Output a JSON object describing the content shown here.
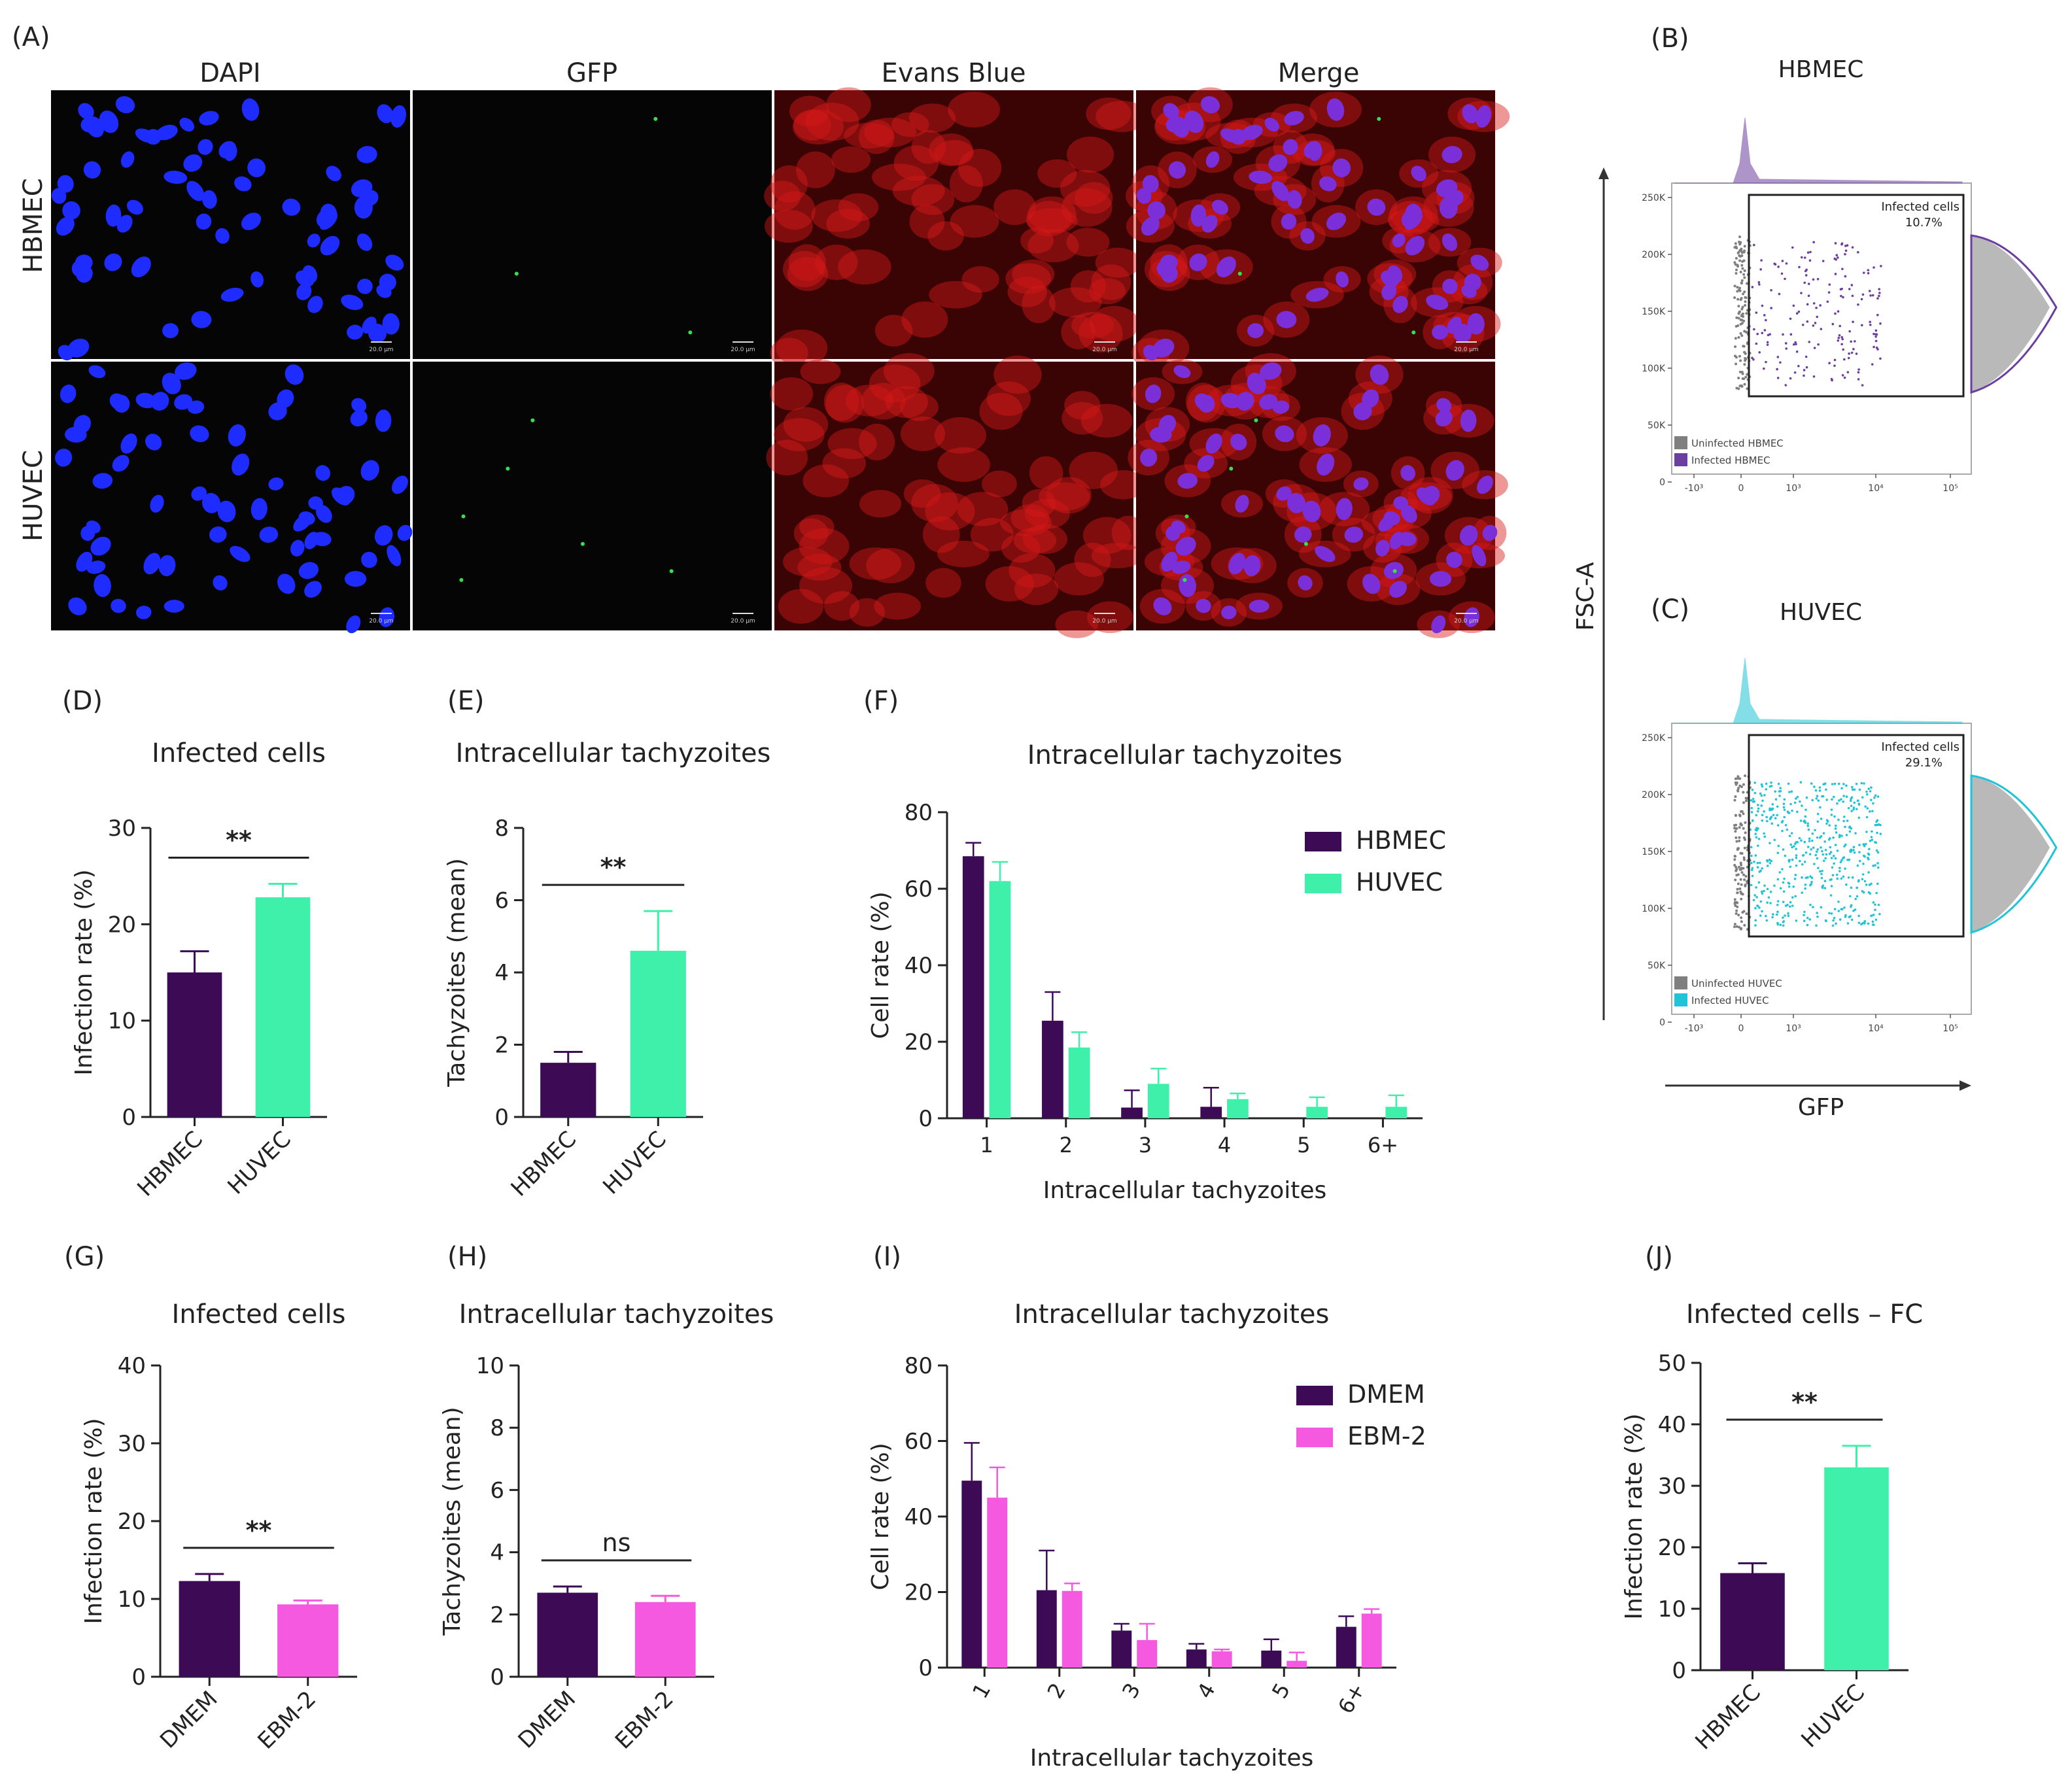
{
  "colors": {
    "hbmec": "#3d0a55",
    "huvec": "#3ff0aa",
    "dmem": "#3d0a55",
    "ebm2": "#f559e0",
    "dapi": "#1f2cff",
    "gfp": "#35e04a",
    "evans": "#d81818",
    "merge_nuc": "#7a2fd8",
    "fc_hbmec": "#6b3fa0",
    "fc_huvec": "#21c4d6",
    "fc_gray": "#7f7f7f"
  },
  "panel_A": {
    "letter": "(A)",
    "columns": [
      "DAPI",
      "GFP",
      "Evans Blue",
      "Merge"
    ],
    "rows": [
      "HBMEC",
      "HUVEC"
    ],
    "scalebar": "20.0 µm"
  },
  "panel_B": {
    "letter": "(B)",
    "title": "HBMEC",
    "gate_label": "Infected cells",
    "gate_value": "10.7%",
    "legend": [
      "Uninfected HBMEC",
      "Infected HBMEC"
    ]
  },
  "panel_C": {
    "letter": "(C)",
    "title": "HUVEC",
    "gate_label": "Infected cells",
    "gate_value": "29.1%",
    "legend": [
      "Uninfected HUVEC",
      "Infected HUVEC"
    ]
  },
  "flow_axes": {
    "ylabel": "FSC-A",
    "xlabel": "GFP",
    "yticks": [
      "250K",
      "200K",
      "150K",
      "100K",
      "50K",
      "0"
    ],
    "xticks": [
      "-10³",
      "0",
      "10³",
      "10⁴",
      "10⁵"
    ]
  },
  "chart_data": [
    {
      "id": "D",
      "letter": "(D)",
      "type": "bar",
      "title": "Infected cells",
      "ylabel": "Infection rate (%)",
      "xlabel": "",
      "ylim": [
        0,
        30
      ],
      "yticks": [
        0,
        10,
        20,
        30
      ],
      "categories": [
        "HBMEC",
        "HUVEC"
      ],
      "values": [
        15.0,
        22.8
      ],
      "errors": [
        2.2,
        1.4
      ],
      "colors": [
        "hbmec",
        "huvec"
      ],
      "significance": "**"
    },
    {
      "id": "E",
      "letter": "(E)",
      "type": "bar",
      "title": "Intracellular tachyzoites",
      "ylabel": "Tachyzoites (mean)",
      "xlabel": "",
      "ylim": [
        0,
        8
      ],
      "yticks": [
        0,
        2,
        4,
        6,
        8
      ],
      "categories": [
        "HBMEC",
        "HUVEC"
      ],
      "values": [
        1.5,
        4.6
      ],
      "errors": [
        0.3,
        1.1
      ],
      "colors": [
        "hbmec",
        "huvec"
      ],
      "significance": "**"
    },
    {
      "id": "F",
      "letter": "(F)",
      "type": "bar",
      "title": "Intracellular tachyzoites",
      "ylabel": "Cell rate (%)",
      "xlabel": "Intracellular tachyzoites",
      "ylim": [
        0,
        80
      ],
      "yticks": [
        0,
        20,
        40,
        60,
        80
      ],
      "categories": [
        "1",
        "2",
        "3",
        "4",
        "5",
        "6+"
      ],
      "series": [
        {
          "name": "HBMEC",
          "color": "hbmec",
          "values": [
            68.5,
            25.5,
            2.8,
            3.0,
            0,
            0
          ],
          "errors": [
            3.5,
            7.5,
            4.5,
            5.0,
            0,
            0
          ]
        },
        {
          "name": "HUVEC",
          "color": "huvec",
          "values": [
            62.0,
            18.5,
            9.0,
            5.0,
            3.0,
            3.0
          ],
          "errors": [
            5.0,
            4.0,
            4.0,
            1.5,
            2.5,
            3.0
          ]
        }
      ]
    },
    {
      "id": "G",
      "letter": "(G)",
      "type": "bar",
      "title": "Infected cells",
      "ylabel": "Infection rate (%)",
      "xlabel": "",
      "ylim": [
        0,
        40
      ],
      "yticks": [
        0,
        10,
        20,
        30,
        40
      ],
      "categories": [
        "DMEM",
        "EBM-2"
      ],
      "values": [
        12.3,
        9.3
      ],
      "errors": [
        0.9,
        0.5
      ],
      "colors": [
        "dmem",
        "ebm2"
      ],
      "significance": "**"
    },
    {
      "id": "H",
      "letter": "(H)",
      "type": "bar",
      "title": "Intracellular tachyzoites",
      "ylabel": "Tachyzoites (mean)",
      "xlabel": "",
      "ylim": [
        0,
        10
      ],
      "yticks": [
        0,
        2,
        4,
        6,
        8,
        10
      ],
      "categories": [
        "DMEM",
        "EBM-2"
      ],
      "values": [
        2.7,
        2.4
      ],
      "errors": [
        0.2,
        0.2
      ],
      "colors": [
        "dmem",
        "ebm2"
      ],
      "significance": "ns"
    },
    {
      "id": "I",
      "letter": "(I)",
      "type": "bar",
      "title": "Intracellular tachyzoites",
      "ylabel": "Cell rate (%)",
      "xlabel": "Intracellular tachyzoites",
      "ylim": [
        0,
        80
      ],
      "yticks": [
        0,
        20,
        40,
        60,
        80
      ],
      "categories": [
        "1",
        "2",
        "3",
        "4",
        "5",
        "6+"
      ],
      "series": [
        {
          "name": "DMEM",
          "color": "dmem",
          "values": [
            49.5,
            20.5,
            9.8,
            4.8,
            4.5,
            10.8
          ],
          "errors": [
            10.0,
            10.5,
            1.8,
            1.5,
            3.0,
            2.8
          ]
        },
        {
          "name": "EBM-2",
          "color": "ebm2",
          "values": [
            45.0,
            20.3,
            7.3,
            4.3,
            1.8,
            14.3
          ],
          "errors": [
            8.0,
            2.0,
            4.3,
            0.5,
            2.2,
            1.2
          ]
        }
      ]
    },
    {
      "id": "J",
      "letter": "(J)",
      "type": "bar",
      "title": "Infected cells – FC",
      "ylabel": "Infection rate (%)",
      "xlabel": "",
      "ylim": [
        0,
        50
      ],
      "yticks": [
        0,
        10,
        20,
        30,
        40,
        50
      ],
      "categories": [
        "HBMEC",
        "HUVEC"
      ],
      "values": [
        15.8,
        33.0
      ],
      "errors": [
        1.6,
        3.5
      ],
      "colors": [
        "hbmec",
        "huvec"
      ],
      "significance": "**"
    }
  ]
}
